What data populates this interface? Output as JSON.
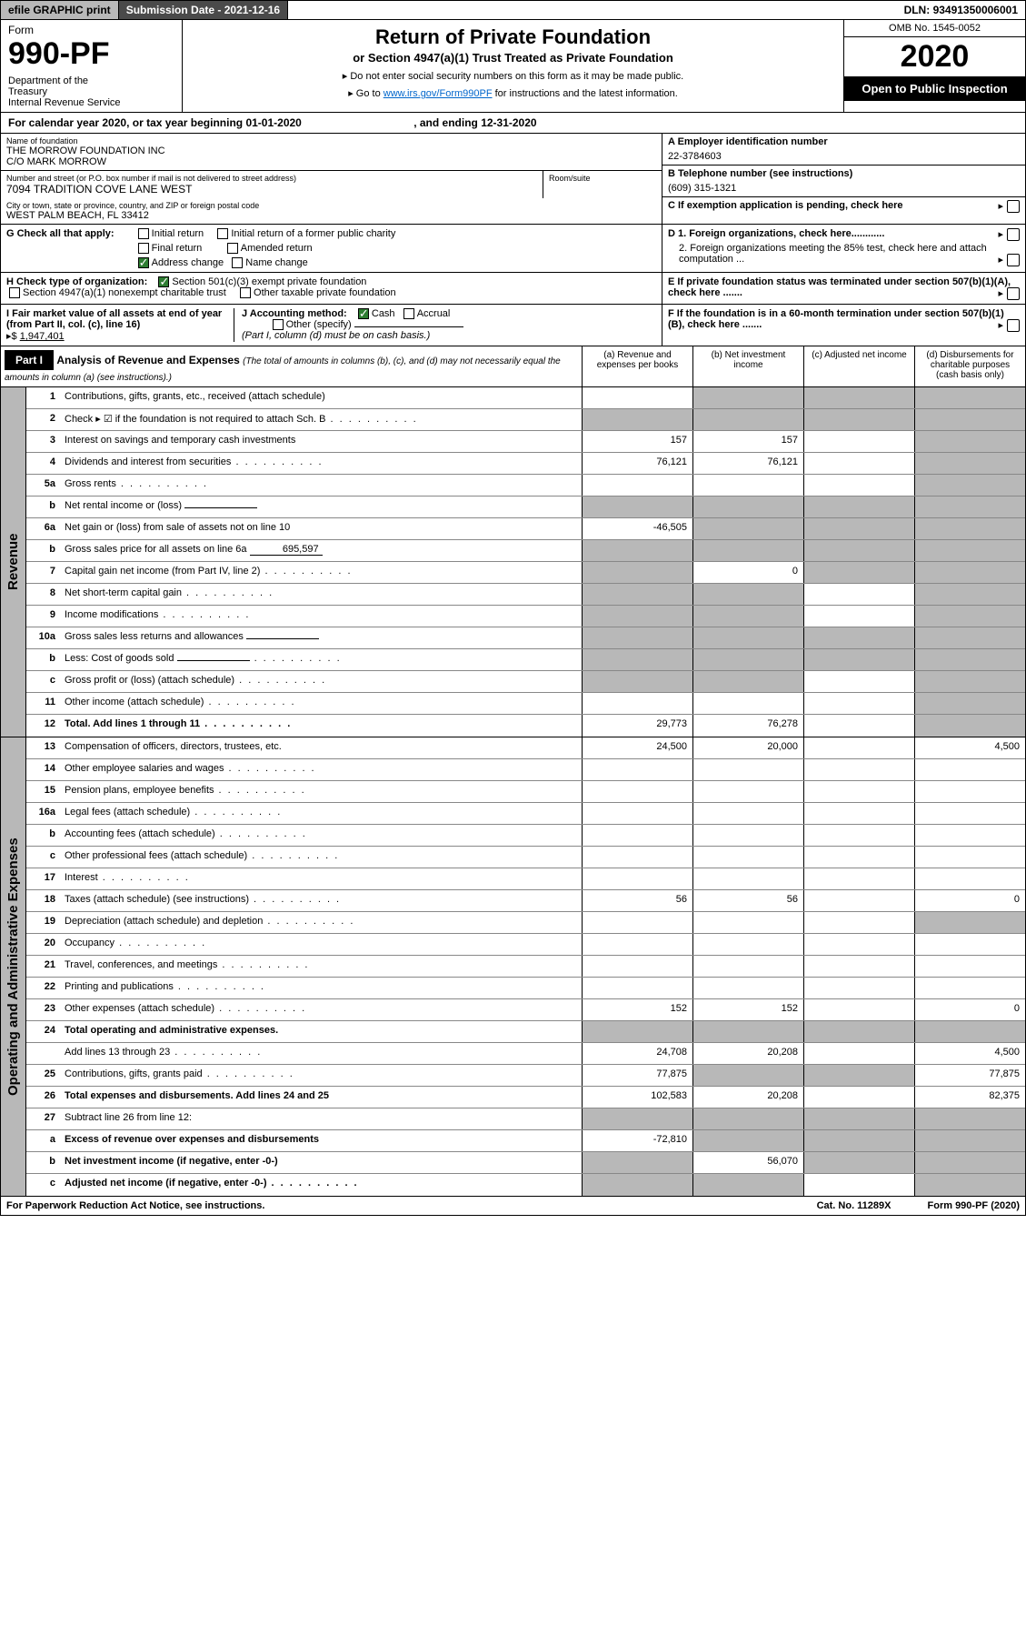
{
  "topbar": {
    "efile": "efile GRAPHIC print",
    "subdate_label": "Submission Date - ",
    "subdate": "2021-12-16",
    "dln_label": "DLN: ",
    "dln": "93491350006001"
  },
  "header": {
    "form_label": "Form",
    "form_no": "990-PF",
    "dept": "Department of the Treasury\nInternal Revenue Service",
    "title": "Return of Private Foundation",
    "subtitle": "or Section 4947(a)(1) Trust Treated as Private Foundation",
    "note1": "▸ Do not enter social security numbers on this form as it may be made public.",
    "note2_pre": "▸ Go to ",
    "note2_link": "www.irs.gov/Form990PF",
    "note2_post": " for instructions and the latest information.",
    "omb": "OMB No. 1545-0052",
    "year": "2020",
    "open": "Open to Public Inspection"
  },
  "calyear": {
    "text_pre": "For calendar year 2020, or tax year beginning ",
    "begin": "01-01-2020",
    "text_mid": ", and ending ",
    "end": "12-31-2020"
  },
  "info": {
    "name_label": "Name of foundation",
    "name1": "THE MORROW FOUNDATION INC",
    "name2": "C/O MARK MORROW",
    "addr_label": "Number and street (or P.O. box number if mail is not delivered to street address)",
    "addr": "7094 TRADITION COVE LANE WEST",
    "room_label": "Room/suite",
    "city_label": "City or town, state or province, country, and ZIP or foreign postal code",
    "city": "WEST PALM BEACH, FL  33412",
    "a_label": "A Employer identification number",
    "a_val": "22-3784603",
    "b_label": "B Telephone number (see instructions)",
    "b_val": "(609) 315-1321",
    "c_label": "C If exemption application is pending, check here",
    "g_label": "G Check all that apply:",
    "g_opts": [
      "Initial return",
      "Initial return of a former public charity",
      "Final return",
      "Amended return",
      "Address change",
      "Name change"
    ],
    "d1": "D 1. Foreign organizations, check here............",
    "d2": "2. Foreign organizations meeting the 85% test, check here and attach computation ...",
    "h_label": "H Check type of organization:",
    "h_opts": [
      "Section 501(c)(3) exempt private foundation",
      "Section 4947(a)(1) nonexempt charitable trust",
      "Other taxable private foundation"
    ],
    "e_label": "E If private foundation status was terminated under section 507(b)(1)(A), check here .......",
    "i_label": "I Fair market value of all assets at end of year (from Part II, col. (c), line 16)",
    "i_val": "1,947,401",
    "j_label": "J Accounting method:",
    "j_opts": [
      "Cash",
      "Accrual",
      "Other (specify)"
    ],
    "j_note": "(Part I, column (d) must be on cash basis.)",
    "f_label": "F If the foundation is in a 60-month termination under section 507(b)(1)(B), check here ......."
  },
  "part1": {
    "label": "Part I",
    "title": "Analysis of Revenue and Expenses",
    "desc": "(The total of amounts in columns (b), (c), and (d) may not necessarily equal the amounts in column (a) (see instructions).)",
    "cols": [
      "(a) Revenue and expenses per books",
      "(b) Net investment income",
      "(c) Adjusted net income",
      "(d) Disbursements for charitable purposes (cash basis only)"
    ]
  },
  "revenue_label": "Revenue",
  "opex_label": "Operating and Administrative Expenses",
  "lines": [
    {
      "no": "1",
      "desc": "Contributions, gifts, grants, etc., received (attach schedule)",
      "a": "",
      "b": "g",
      "c": "g",
      "d": "g"
    },
    {
      "no": "2",
      "desc": "Check ▸ ☑ if the foundation is not required to attach Sch. B",
      "a": "g",
      "b": "g",
      "c": "g",
      "d": "g",
      "dots": true
    },
    {
      "no": "3",
      "desc": "Interest on savings and temporary cash investments",
      "a": "157",
      "b": "157",
      "c": "",
      "d": "g"
    },
    {
      "no": "4",
      "desc": "Dividends and interest from securities",
      "a": "76,121",
      "b": "76,121",
      "c": "",
      "d": "g",
      "dots": true
    },
    {
      "no": "5a",
      "desc": "Gross rents",
      "a": "",
      "b": "",
      "c": "",
      "d": "g",
      "dots": true
    },
    {
      "no": "b",
      "desc": "Net rental income or (loss)",
      "a": "g",
      "b": "g",
      "c": "g",
      "d": "g",
      "inline": ""
    },
    {
      "no": "6a",
      "desc": "Net gain or (loss) from sale of assets not on line 10",
      "a": "-46,505",
      "b": "g",
      "c": "g",
      "d": "g"
    },
    {
      "no": "b",
      "desc": "Gross sales price for all assets on line 6a",
      "a": "g",
      "b": "g",
      "c": "g",
      "d": "g",
      "inline": "695,597"
    },
    {
      "no": "7",
      "desc": "Capital gain net income (from Part IV, line 2)",
      "a": "g",
      "b": "0",
      "c": "g",
      "d": "g",
      "dots": true
    },
    {
      "no": "8",
      "desc": "Net short-term capital gain",
      "a": "g",
      "b": "g",
      "c": "",
      "d": "g",
      "dots": true
    },
    {
      "no": "9",
      "desc": "Income modifications",
      "a": "g",
      "b": "g",
      "c": "",
      "d": "g",
      "dots": true
    },
    {
      "no": "10a",
      "desc": "Gross sales less returns and allowances",
      "a": "g",
      "b": "g",
      "c": "g",
      "d": "g",
      "inline": ""
    },
    {
      "no": "b",
      "desc": "Less: Cost of goods sold",
      "a": "g",
      "b": "g",
      "c": "g",
      "d": "g",
      "inline": "",
      "dots": true
    },
    {
      "no": "c",
      "desc": "Gross profit or (loss) (attach schedule)",
      "a": "g",
      "b": "g",
      "c": "",
      "d": "g",
      "dots": true
    },
    {
      "no": "11",
      "desc": "Other income (attach schedule)",
      "a": "",
      "b": "",
      "c": "",
      "d": "g",
      "dots": true
    },
    {
      "no": "12",
      "desc": "Total. Add lines 1 through 11",
      "a": "29,773",
      "b": "76,278",
      "c": "",
      "d": "g",
      "bold": true,
      "dots": true
    }
  ],
  "oplines": [
    {
      "no": "13",
      "desc": "Compensation of officers, directors, trustees, etc.",
      "a": "24,500",
      "b": "20,000",
      "c": "",
      "d": "4,500"
    },
    {
      "no": "14",
      "desc": "Other employee salaries and wages",
      "a": "",
      "b": "",
      "c": "",
      "d": "",
      "dots": true
    },
    {
      "no": "15",
      "desc": "Pension plans, employee benefits",
      "a": "",
      "b": "",
      "c": "",
      "d": "",
      "dots": true
    },
    {
      "no": "16a",
      "desc": "Legal fees (attach schedule)",
      "a": "",
      "b": "",
      "c": "",
      "d": "",
      "dots": true
    },
    {
      "no": "b",
      "desc": "Accounting fees (attach schedule)",
      "a": "",
      "b": "",
      "c": "",
      "d": "",
      "dots": true
    },
    {
      "no": "c",
      "desc": "Other professional fees (attach schedule)",
      "a": "",
      "b": "",
      "c": "",
      "d": "",
      "dots": true
    },
    {
      "no": "17",
      "desc": "Interest",
      "a": "",
      "b": "",
      "c": "",
      "d": "",
      "dots": true
    },
    {
      "no": "18",
      "desc": "Taxes (attach schedule) (see instructions)",
      "a": "56",
      "b": "56",
      "c": "",
      "d": "0",
      "dots": true
    },
    {
      "no": "19",
      "desc": "Depreciation (attach schedule) and depletion",
      "a": "",
      "b": "",
      "c": "",
      "d": "g",
      "dots": true
    },
    {
      "no": "20",
      "desc": "Occupancy",
      "a": "",
      "b": "",
      "c": "",
      "d": "",
      "dots": true
    },
    {
      "no": "21",
      "desc": "Travel, conferences, and meetings",
      "a": "",
      "b": "",
      "c": "",
      "d": "",
      "dots": true
    },
    {
      "no": "22",
      "desc": "Printing and publications",
      "a": "",
      "b": "",
      "c": "",
      "d": "",
      "dots": true
    },
    {
      "no": "23",
      "desc": "Other expenses (attach schedule)",
      "a": "152",
      "b": "152",
      "c": "",
      "d": "0",
      "dots": true
    },
    {
      "no": "24",
      "desc": "Total operating and administrative expenses.",
      "a": "g",
      "b": "g",
      "c": "g",
      "d": "g",
      "bold": true
    },
    {
      "no": "",
      "desc": "Add lines 13 through 23",
      "a": "24,708",
      "b": "20,208",
      "c": "",
      "d": "4,500",
      "dots": true
    },
    {
      "no": "25",
      "desc": "Contributions, gifts, grants paid",
      "a": "77,875",
      "b": "g",
      "c": "g",
      "d": "77,875",
      "dots": true
    },
    {
      "no": "26",
      "desc": "Total expenses and disbursements. Add lines 24 and 25",
      "a": "102,583",
      "b": "20,208",
      "c": "",
      "d": "82,375",
      "bold": true
    },
    {
      "no": "27",
      "desc": "Subtract line 26 from line 12:",
      "a": "g",
      "b": "g",
      "c": "g",
      "d": "g"
    },
    {
      "no": "a",
      "desc": "Excess of revenue over expenses and disbursements",
      "a": "-72,810",
      "b": "g",
      "c": "g",
      "d": "g",
      "bold": true
    },
    {
      "no": "b",
      "desc": "Net investment income (if negative, enter -0-)",
      "a": "g",
      "b": "56,070",
      "c": "g",
      "d": "g",
      "bold": true
    },
    {
      "no": "c",
      "desc": "Adjusted net income (if negative, enter -0-)",
      "a": "g",
      "b": "g",
      "c": "",
      "d": "g",
      "bold": true,
      "dots": true
    }
  ],
  "footer": {
    "left": "For Paperwork Reduction Act Notice, see instructions.",
    "mid": "Cat. No. 11289X",
    "right": "Form 990-PF (2020)"
  }
}
